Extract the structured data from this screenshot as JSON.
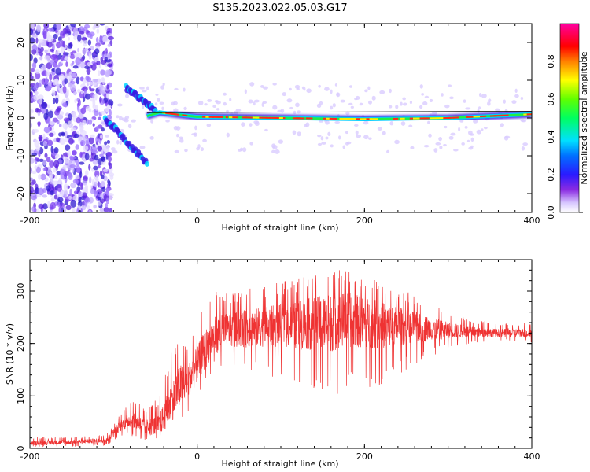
{
  "chart_data": [
    {
      "type": "heatmap",
      "title": "S135.2023.022.05.03.G17",
      "xlabel": "Height of straight line (km)",
      "ylabel": "Frequency (Hz)",
      "xlim": [
        -200,
        400
      ],
      "ylim": [
        -25,
        25
      ],
      "x_ticks": [
        -200,
        0,
        200,
        400
      ],
      "y_ticks": [
        -20,
        -10,
        0,
        10,
        20
      ],
      "grid": false,
      "colorbar": {
        "label": "Normalized spectral amplitude",
        "range": [
          0,
          1
        ],
        "ticks": [
          "0.0",
          "0.2",
          "0.4",
          "0.6",
          "0.8"
        ],
        "colormap": "rainbow (white-purple-blue-cyan-green-yellow-red-magenta)"
      },
      "features": {
        "noise_region_x": [
          -200,
          -110
        ],
        "chirp_traces": [
          {
            "x": [
              -110,
              -60
            ],
            "y": [
              0,
              -12
            ]
          },
          {
            "x": [
              -85,
              -50
            ],
            "y": [
              8,
              2
            ]
          }
        ],
        "dominant_line": {
          "points": [
            [
              -60,
              0.5
            ],
            [
              -45,
              1.5
            ],
            [
              0,
              0.3
            ],
            [
              200,
              -0.3
            ],
            [
              300,
              0
            ],
            [
              350,
              0.5
            ],
            [
              400,
              1
            ]
          ]
        }
      }
    },
    {
      "type": "line",
      "title": "",
      "xlabel": "Height of straight line (km)",
      "ylabel": "SNR (10 * v/v)",
      "xlim": [
        -200,
        400
      ],
      "ylim": [
        0,
        360
      ],
      "x_ticks": [
        -200,
        0,
        200,
        400
      ],
      "y_ticks": [
        0,
        100,
        200,
        300
      ],
      "grid": false,
      "series": [
        {
          "color": "#ef3333",
          "envelope": {
            "x": [
              -200,
              -150,
              -110,
              -100,
              -90,
              -80,
              -60,
              -45,
              -30,
              -20,
              -10,
              0,
              10,
              20,
              40,
              80,
              120,
              160,
              180,
              200,
              220,
              250,
              300,
              330,
              360,
              400
            ],
            "mean": [
              10,
              12,
              15,
              30,
              45,
              55,
              40,
              45,
              90,
              120,
              130,
              160,
              190,
              215,
              225,
              232,
              235,
              240,
              245,
              240,
              235,
              232,
              225,
              222,
              220,
              220
            ],
            "min": [
              2,
              3,
              5,
              10,
              20,
              25,
              10,
              10,
              20,
              40,
              60,
              80,
              120,
              150,
              150,
              140,
              120,
              100,
              110,
              110,
              120,
              150,
              190,
              200,
              205,
              200
            ],
            "max": [
              22,
              22,
              25,
              45,
              70,
              90,
              80,
              100,
              190,
              220,
              210,
              230,
              290,
              310,
              300,
              310,
              325,
              350,
              345,
              330,
              320,
              300,
              260,
              245,
              240,
              240
            ]
          }
        }
      ]
    }
  ]
}
